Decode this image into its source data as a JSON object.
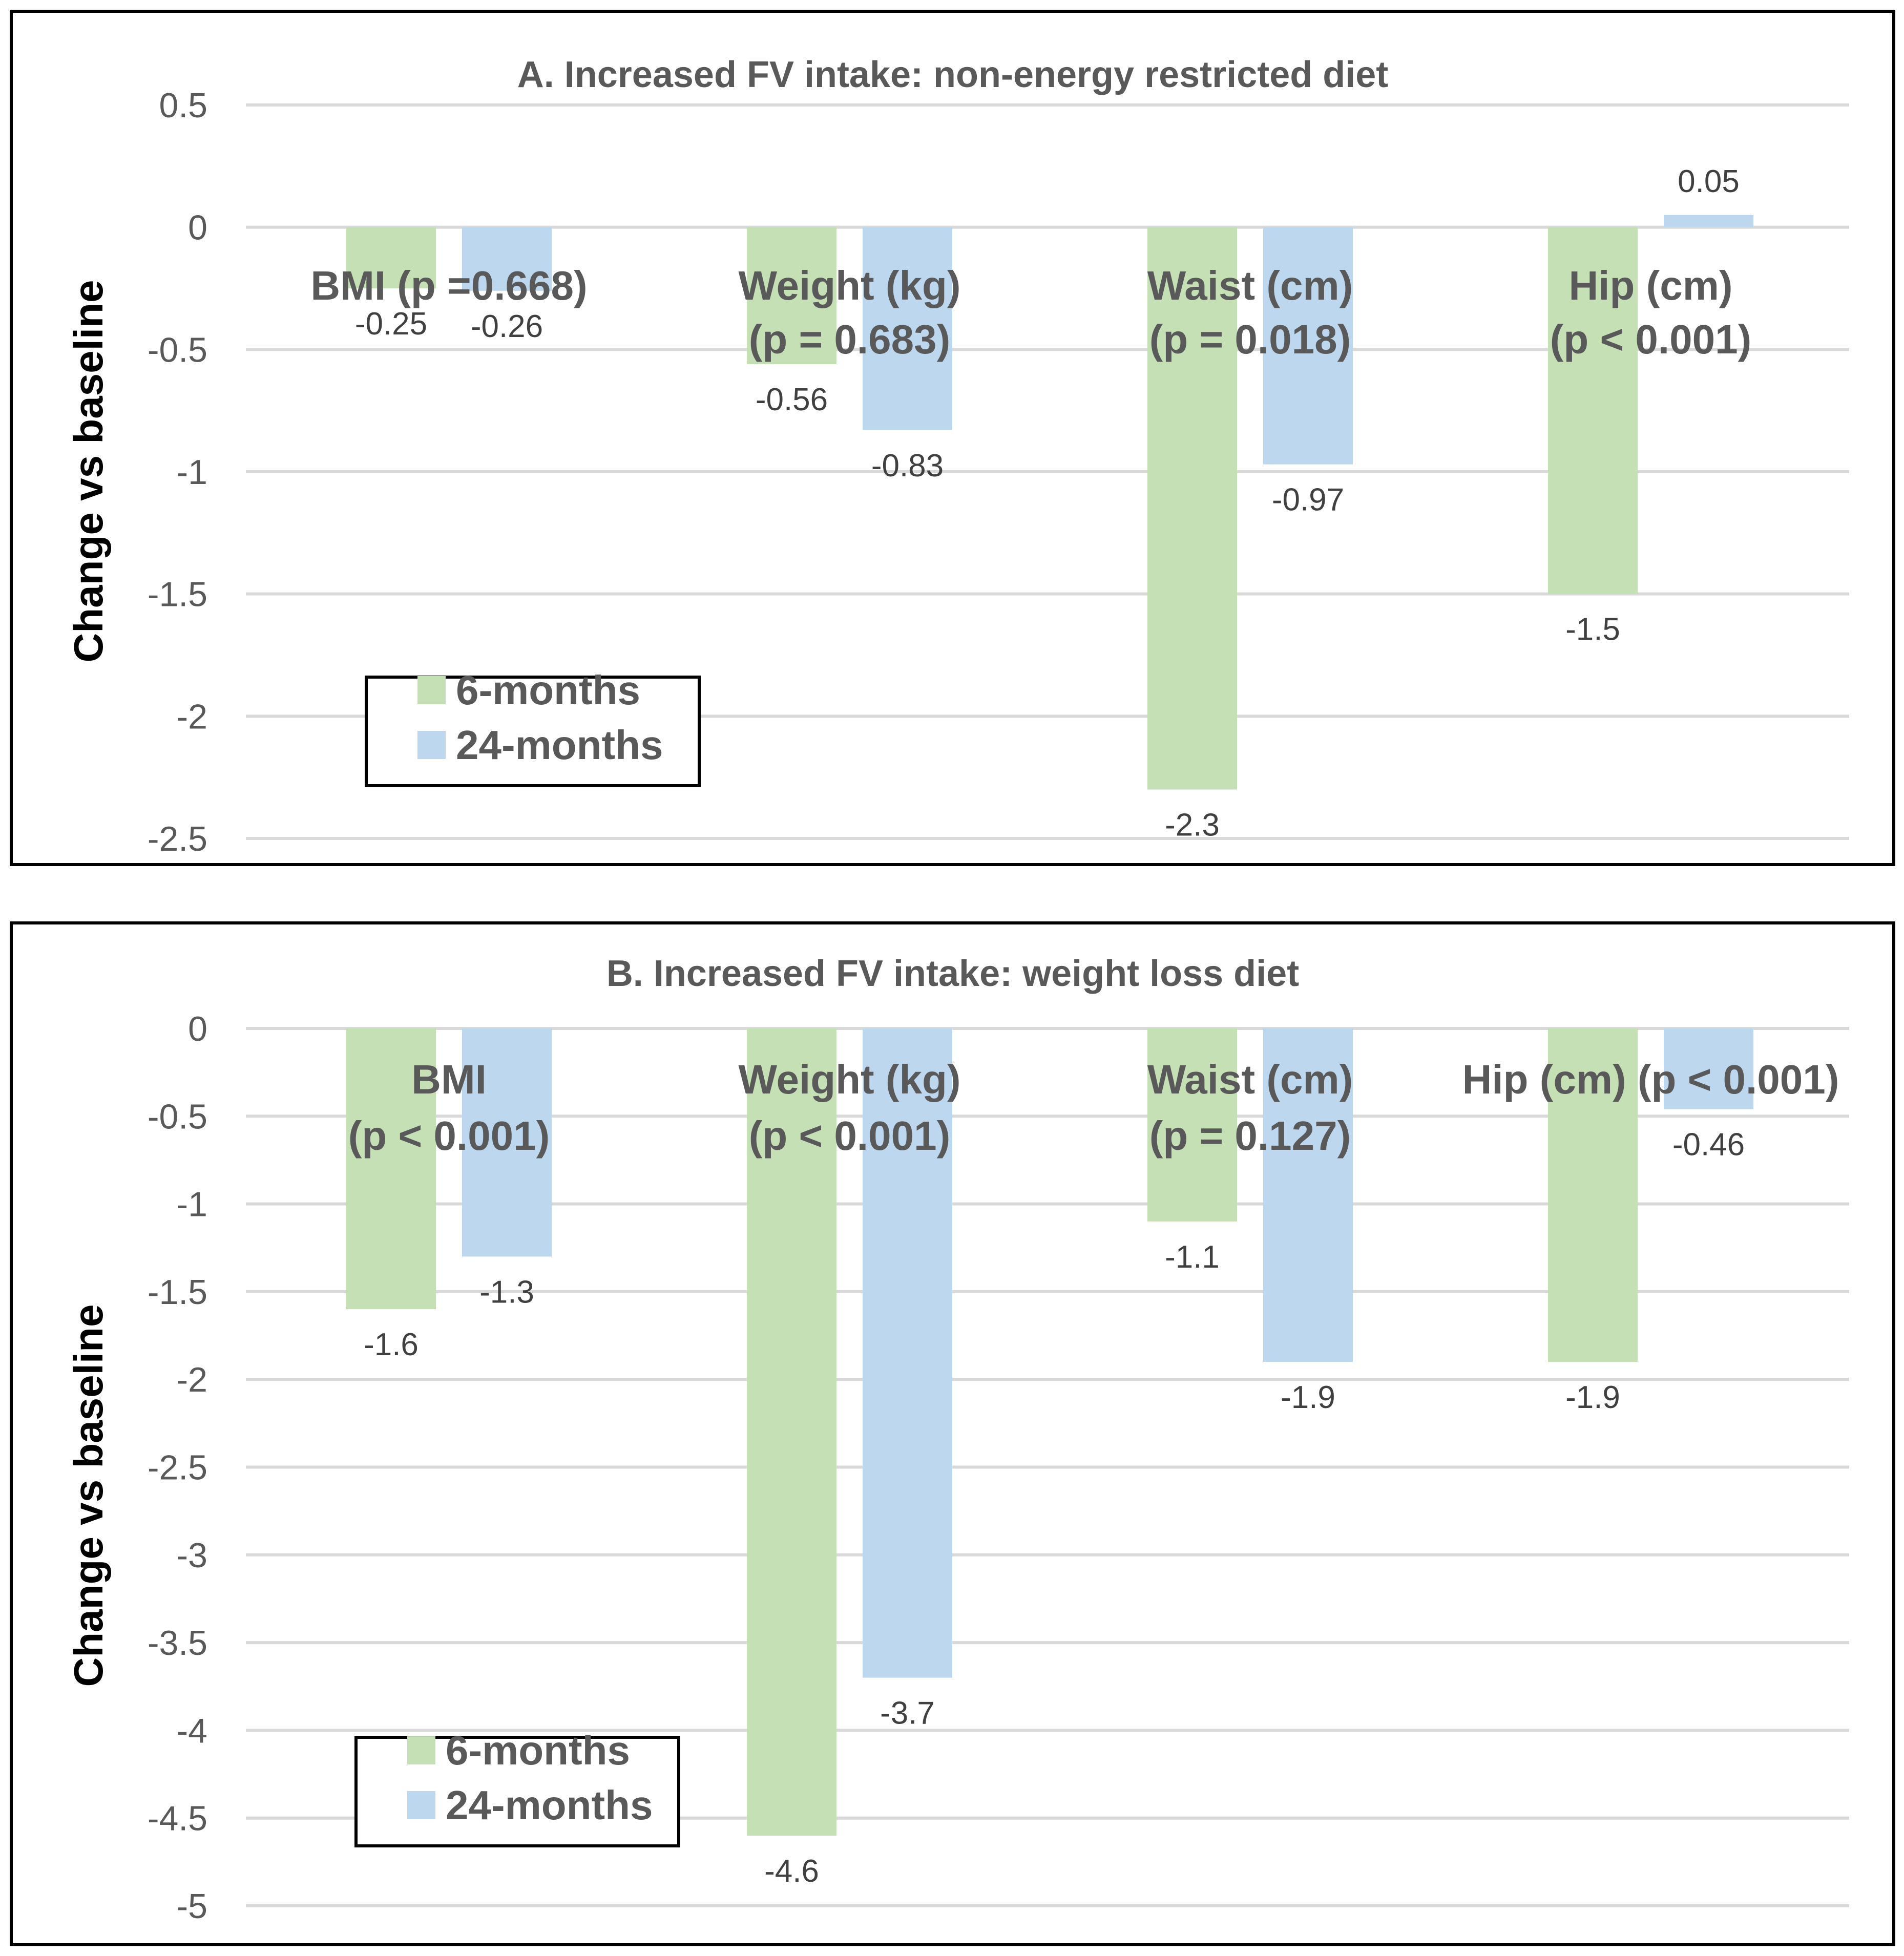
{
  "colors": {
    "series_6m": "#c5e0b4",
    "series_24m": "#bdd7ee",
    "frame": "#000000",
    "grid": "#d9d9d9",
    "text": "#595959"
  },
  "chart_data": [
    {
      "type": "bar",
      "title": "A. Increased FV intake: non-energy restricted diet",
      "ylabel": "Change vs baseline",
      "xlabel": "",
      "ylim": [
        -2.5,
        0.5
      ],
      "yticks": [
        0.5,
        0,
        -0.5,
        -1,
        -1.5,
        -2,
        -2.5
      ],
      "grid": true,
      "legend_position": "bottom-left",
      "categories": [
        [
          "BMI (p =0.668)"
        ],
        [
          "Weight (kg)",
          "(p = 0.683)"
        ],
        [
          "Waist (cm)",
          "(p = 0.018)"
        ],
        [
          "Hip (cm)",
          "(p < 0.001)"
        ]
      ],
      "series": [
        {
          "name": "6-months",
          "values": [
            -0.25,
            -0.56,
            -2.3,
            -1.5
          ]
        },
        {
          "name": "24-months",
          "values": [
            -0.26,
            -0.83,
            -0.97,
            0.05
          ]
        }
      ]
    },
    {
      "type": "bar",
      "title": "B. Increased FV intake: weight loss diet",
      "ylabel": "Change vs baseline",
      "xlabel": "",
      "ylim": [
        -5,
        0
      ],
      "yticks": [
        0,
        -0.5,
        -1,
        -1.5,
        -2,
        -2.5,
        -3,
        -3.5,
        -4,
        -4.5,
        -5
      ],
      "grid": true,
      "legend_position": "bottom-left",
      "categories": [
        [
          "BMI",
          "(p < 0.001)"
        ],
        [
          "Weight (kg)",
          "(p < 0.001)"
        ],
        [
          "Waist (cm)",
          "(p = 0.127)"
        ],
        [
          "Hip (cm) (p < 0.001)"
        ]
      ],
      "series": [
        {
          "name": "6-months",
          "values": [
            -1.6,
            -4.6,
            -1.1,
            -1.9
          ]
        },
        {
          "name": "24-months",
          "values": [
            -1.3,
            -3.7,
            -1.9,
            -0.46
          ]
        }
      ]
    }
  ]
}
